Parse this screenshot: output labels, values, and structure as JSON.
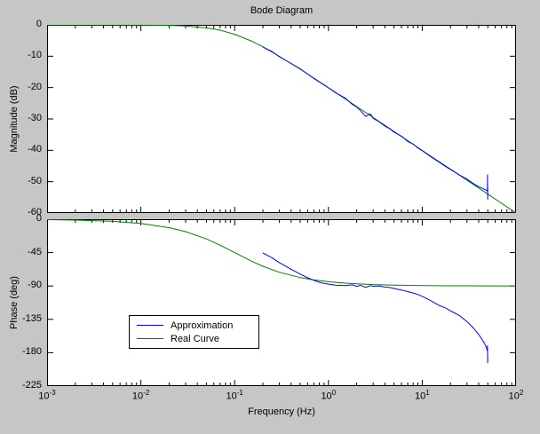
{
  "figure": {
    "background": "#c6c6c6",
    "plot_background": "#ffffff",
    "axis_color": "#000000"
  },
  "chart_data": [
    {
      "type": "line",
      "title": "Bode Diagram",
      "ylabel": "Magnitude (dB)",
      "xscale": "log",
      "grid": false,
      "xlim": [
        0.001,
        100
      ],
      "ylim": [
        -60,
        0
      ],
      "yticks": [
        0,
        -10,
        -20,
        -30,
        -40,
        -50,
        -60
      ],
      "xticks": [
        0.001,
        0.01,
        0.1,
        1,
        10,
        100
      ],
      "show_xtick_labels": false,
      "series": [
        {
          "name": "Approximation",
          "color": "#0000ff",
          "x": [
            0.2,
            0.25,
            0.3,
            0.4,
            0.5,
            0.6,
            0.7,
            0.8,
            0.9,
            1,
            1.2,
            1.5,
            1.8,
            2,
            2.2,
            2.5,
            2.8,
            3,
            3.5,
            4,
            4.5,
            5,
            6,
            7,
            8,
            9,
            10,
            12,
            15,
            18,
            20,
            25,
            30,
            35,
            40,
            45,
            48,
            49.5,
            49.7,
            49.9,
            50
          ],
          "y": [
            -7.1,
            -8.5,
            -10.2,
            -12.3,
            -14.0,
            -15.7,
            -17.1,
            -18.2,
            -19.2,
            -20.1,
            -21.7,
            -23.3,
            -25.4,
            -26.2,
            -27.4,
            -29.2,
            -28.4,
            -29.8,
            -31.0,
            -32.3,
            -33.1,
            -34.2,
            -35.5,
            -37.2,
            -38.0,
            -39.3,
            -40.1,
            -41.8,
            -43.7,
            -45.3,
            -46.1,
            -47.9,
            -49.2,
            -50.6,
            -51.6,
            -52.3,
            -52.7,
            -53.0,
            -47.8,
            -55.6,
            -51.8
          ]
        },
        {
          "name": "Real Curve",
          "color": "#008000",
          "x": [
            0.001,
            0.002,
            0.005,
            0.01,
            0.02,
            0.03,
            0.05,
            0.07,
            0.1,
            0.15,
            0.2,
            0.3,
            0.5,
            0.7,
            1,
            1.5,
            2,
            3,
            5,
            7,
            10,
            15,
            20,
            30,
            50,
            70,
            100
          ],
          "y": [
            0,
            0,
            -0.01,
            -0.04,
            -0.17,
            -0.37,
            -0.97,
            -1.7,
            -3.01,
            -5.12,
            -6.99,
            -10.04,
            -14.15,
            -16.99,
            -20.04,
            -23.55,
            -26.03,
            -29.55,
            -33.98,
            -36.9,
            -40.04,
            -43.55,
            -46.03,
            -49.55,
            -53.98,
            -56.9,
            -60
          ]
        }
      ]
    },
    {
      "type": "line",
      "ylabel": "Phase (deg)",
      "xlabel": "Frequency  (Hz)",
      "xscale": "log",
      "grid": false,
      "xlim": [
        0.001,
        100
      ],
      "ylim": [
        -225,
        0
      ],
      "yticks": [
        0,
        -45,
        -90,
        -135,
        -180,
        -225
      ],
      "xticks": [
        0.001,
        0.01,
        0.1,
        1,
        10,
        100
      ],
      "show_xtick_labels": true,
      "legend": {
        "position": "bottom-left",
        "entries": [
          "Approximation",
          "Real Curve"
        ]
      },
      "series": [
        {
          "name": "Approximation",
          "color": "#0000ff",
          "x": [
            0.2,
            0.25,
            0.3,
            0.4,
            0.5,
            0.6,
            0.7,
            0.8,
            0.9,
            1,
            1.2,
            1.5,
            1.8,
            2,
            2.2,
            2.5,
            2.8,
            3,
            3.5,
            4,
            4.5,
            5,
            6,
            7,
            8,
            9,
            10,
            12,
            15,
            18,
            20,
            25,
            30,
            35,
            40,
            45,
            48,
            49.5,
            49.7,
            49.9,
            50
          ],
          "y": [
            -45.5,
            -52,
            -58.5,
            -67.5,
            -74,
            -79,
            -82.5,
            -85,
            -86.5,
            -87.5,
            -89,
            -89.5,
            -88.5,
            -90.5,
            -89,
            -92,
            -89.5,
            -90.5,
            -90,
            -91.5,
            -92,
            -93.5,
            -95.5,
            -97.5,
            -99.5,
            -101.5,
            -104,
            -109,
            -116,
            -120,
            -123.5,
            -130,
            -138,
            -146.5,
            -155.5,
            -165,
            -172,
            -177.5,
            -170.5,
            -193.5,
            -186
          ]
        },
        {
          "name": "Real Curve",
          "color": "#008000",
          "x": [
            0.001,
            0.002,
            0.005,
            0.01,
            0.02,
            0.03,
            0.05,
            0.07,
            0.1,
            0.15,
            0.2,
            0.3,
            0.5,
            0.7,
            1,
            1.5,
            2,
            3,
            5,
            7,
            10,
            15,
            20,
            30,
            50,
            70,
            100
          ],
          "y": [
            -0.57,
            -1.15,
            -2.86,
            -5.71,
            -11.31,
            -16.7,
            -26.57,
            -34.99,
            -45,
            -56.31,
            -63.43,
            -71.57,
            -78.69,
            -81.87,
            -84.29,
            -86.19,
            -87.14,
            -88.09,
            -88.85,
            -89.18,
            -89.43,
            -89.62,
            -89.71,
            -89.81,
            -89.89,
            -89.92,
            -89.94
          ]
        }
      ]
    }
  ]
}
